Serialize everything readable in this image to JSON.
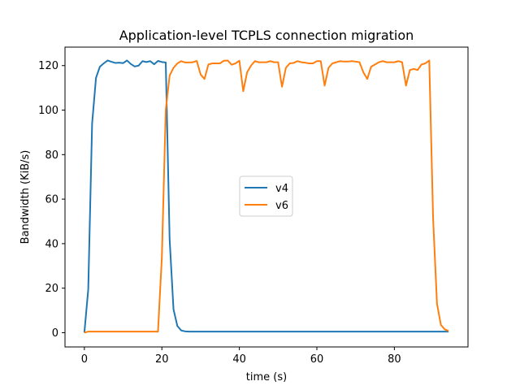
{
  "chart_data": {
    "type": "line",
    "title": "Application-level TCPLS connection migration",
    "xlabel": "time (s)",
    "ylabel": "Bandwidth (KiB/s)",
    "xlim": [
      -5,
      99
    ],
    "ylim": [
      -6.4,
      128.3
    ],
    "xticks": [
      0,
      20,
      40,
      60,
      80
    ],
    "yticks": [
      0,
      20,
      40,
      60,
      80,
      100,
      120
    ],
    "grid": false,
    "legend": "center",
    "series": [
      {
        "name": "v4",
        "color": "#1f77b4",
        "x": [
          0,
          1,
          2,
          3,
          4,
          5,
          6,
          7,
          8,
          9,
          10,
          11,
          12,
          13,
          14,
          15,
          16,
          17,
          18,
          19,
          20,
          21,
          22,
          23,
          24,
          25,
          26,
          27,
          28,
          29,
          30,
          31,
          32,
          33,
          34,
          35,
          36,
          37,
          38,
          39,
          40,
          41,
          42,
          43,
          44,
          45,
          46,
          47,
          48,
          49,
          50,
          51,
          52,
          53,
          54,
          55,
          56,
          57,
          58,
          59,
          60,
          61,
          62,
          63,
          64,
          65,
          66,
          67,
          68,
          69,
          70,
          71,
          72,
          73,
          74,
          75,
          76,
          77,
          78,
          79,
          80,
          81,
          82,
          83,
          84,
          85,
          86,
          87,
          88,
          89,
          90,
          91,
          92,
          93,
          94
        ],
        "y": [
          0,
          19.5,
          94,
          114.5,
          119.5,
          121,
          122.3,
          121.7,
          121.2,
          121.3,
          121.1,
          122.3,
          120.7,
          119.6,
          120,
          122,
          121.6,
          122,
          120.6,
          122.1,
          121.6,
          121.4,
          42,
          10.5,
          3,
          1,
          0.6,
          0.5,
          0.5,
          0.5,
          0.5,
          0.5,
          0.5,
          0.5,
          0.5,
          0.5,
          0.5,
          0.5,
          0.5,
          0.5,
          0.5,
          0.5,
          0.5,
          0.5,
          0.5,
          0.5,
          0.5,
          0.5,
          0.5,
          0.5,
          0.5,
          0.5,
          0.5,
          0.5,
          0.5,
          0.5,
          0.5,
          0.5,
          0.5,
          0.5,
          0.5,
          0.5,
          0.5,
          0.5,
          0.5,
          0.5,
          0.5,
          0.5,
          0.5,
          0.5,
          0.5,
          0.5,
          0.5,
          0.5,
          0.5,
          0.5,
          0.5,
          0.5,
          0.5,
          0.5,
          0.5,
          0.5,
          0.5,
          0.5,
          0.5,
          0.5,
          0.5,
          0.5,
          0.5,
          0.5,
          0.5,
          0.5,
          0.5,
          0.5,
          0.5
        ]
      },
      {
        "name": "v6",
        "color": "#ff7f0e",
        "x": [
          0,
          1,
          2,
          3,
          4,
          5,
          6,
          7,
          8,
          9,
          10,
          11,
          12,
          13,
          14,
          15,
          16,
          17,
          18,
          19,
          20,
          21,
          22,
          23,
          24,
          25,
          26,
          27,
          28,
          29,
          30,
          31,
          32,
          33,
          34,
          35,
          36,
          37,
          38,
          39,
          40,
          41,
          42,
          43,
          44,
          45,
          46,
          47,
          48,
          49,
          50,
          51,
          52,
          53,
          54,
          55,
          56,
          57,
          58,
          59,
          60,
          61,
          62,
          63,
          64,
          65,
          66,
          67,
          68,
          69,
          70,
          71,
          72,
          73,
          74,
          75,
          76,
          77,
          78,
          79,
          80,
          81,
          82,
          83,
          84,
          85,
          86,
          87,
          88,
          89,
          90,
          91,
          92,
          93,
          94
        ],
        "y": [
          0,
          0.5,
          0.5,
          0.5,
          0.5,
          0.5,
          0.5,
          0.5,
          0.5,
          0.5,
          0.5,
          0.5,
          0.5,
          0.5,
          0.5,
          0.5,
          0.5,
          0.5,
          0.5,
          0.5,
          34,
          100,
          115.5,
          119,
          121,
          122,
          121.4,
          121.4,
          121.5,
          122.1,
          116,
          114,
          120.5,
          121,
          121,
          121,
          122.2,
          122.3,
          120.4,
          121,
          122.2,
          108.5,
          117,
          120,
          122,
          121.5,
          121.5,
          121.5,
          122,
          121.5,
          121.5,
          110.5,
          119,
          121,
          121.2,
          122,
          121.5,
          121.3,
          121,
          121,
          122,
          122,
          111,
          119,
          121,
          121.5,
          122,
          121.8,
          121.8,
          122,
          121.8,
          121.5,
          117,
          114,
          119.5,
          120.5,
          121.5,
          122,
          121.5,
          121.5,
          121.5,
          122,
          121.5,
          111,
          118,
          118.5,
          118,
          120.5,
          121,
          122.3,
          51,
          13,
          3.5,
          1.5,
          0.8
        ]
      }
    ]
  }
}
